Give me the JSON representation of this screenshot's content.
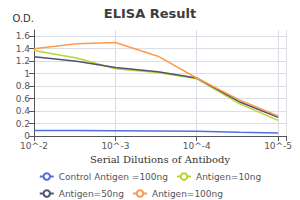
{
  "chart_data": {
    "type": "line",
    "title": "ELISA Result",
    "xlabel": "Serial Dilutions of Antibody",
    "ylabel": "O.D.",
    "log": "x",
    "xlim": [
      0.01,
      8e-06
    ],
    "xticks": [
      {
        "value": 0.01,
        "label": "10^-2"
      },
      {
        "value": 0.001,
        "label": "10^-3"
      },
      {
        "value": 0.0001,
        "label": "10^-4"
      },
      {
        "value": 1e-05,
        "label": "10^-5"
      }
    ],
    "ylim": [
      0,
      1.7
    ],
    "yticks": [
      0,
      0.2,
      0.4,
      0.6,
      0.8,
      1,
      1.2,
      1.4,
      1.6
    ],
    "grid": true,
    "legend": "bottom",
    "x": [
      0.01,
      0.003,
      0.001,
      0.0003,
      0.0001,
      3e-05,
      1e-05
    ],
    "series": [
      {
        "name": "Control Antigen =100ng",
        "values": [
          0.09,
          0.09,
          0.085,
          0.08,
          0.075,
          0.06,
          0.05
        ]
      },
      {
        "name": "Antigen=10ng",
        "values": [
          1.37,
          1.25,
          1.08,
          1.02,
          0.92,
          0.52,
          0.25
        ]
      },
      {
        "name": "Antigen=50ng",
        "values": [
          1.27,
          1.2,
          1.1,
          1.03,
          0.93,
          0.55,
          0.3
        ]
      },
      {
        "name": "Antigen=100ng",
        "values": [
          1.4,
          1.48,
          1.5,
          1.28,
          0.93,
          0.58,
          0.32
        ]
      }
    ]
  }
}
